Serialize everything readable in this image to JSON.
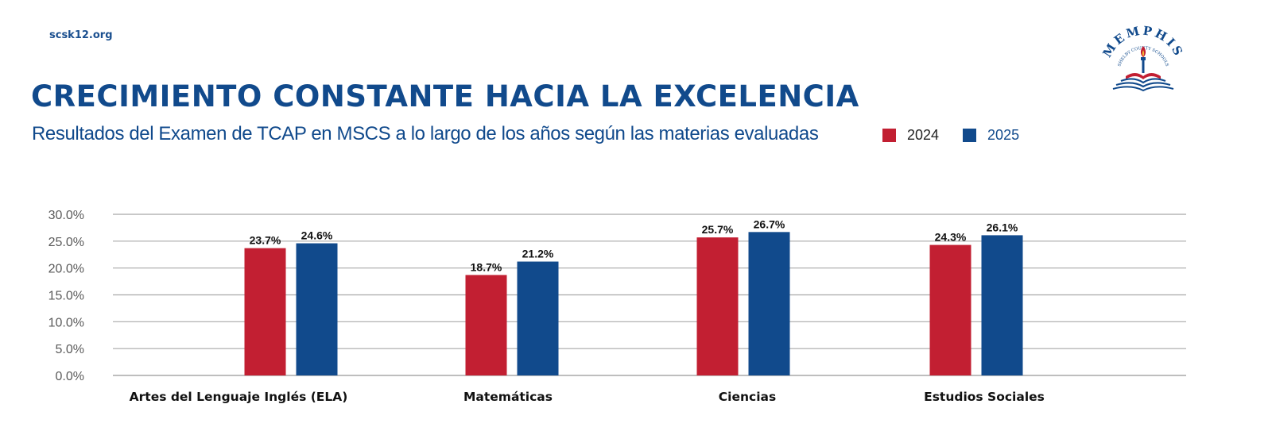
{
  "header": {
    "site": "scsk12.org",
    "title": "CRECIMIENTO CONSTANTE HACIA LA EXCELENCIA",
    "subtitle": "Resultados del Examen de TCAP en MSCS a lo largo de los años según las materias evaluadas"
  },
  "logo": {
    "text": "MEMPHIS",
    "subtext": "SHELBY COUNTY SCHOOLS"
  },
  "colors": {
    "2024": "#c21f32",
    "2025": "#114a8c",
    "grid": "#a8a8a8",
    "axis_text": "#5a5a5a"
  },
  "chart_data": {
    "type": "bar",
    "categories": [
      "Artes del Lenguaje Inglés (ELA)",
      "Matemáticas",
      "Ciencias",
      "Estudios Sociales"
    ],
    "series": [
      {
        "name": "2024",
        "values": [
          23.7,
          18.7,
          25.7,
          24.3
        ],
        "labels": [
          "23.7%",
          "18.7%",
          "25.7%",
          "24.3%"
        ]
      },
      {
        "name": "2025",
        "values": [
          24.6,
          21.2,
          26.7,
          26.1
        ],
        "labels": [
          "24.6%",
          "21.2%",
          "26.7%",
          "26.1%"
        ]
      }
    ],
    "ylim": [
      0,
      30
    ],
    "yticks": [
      "0.0%",
      "5.0%",
      "10.0%",
      "15.0%",
      "20.0%",
      "25.0%",
      "30.0%"
    ],
    "grid": true,
    "legend": "top-right"
  }
}
